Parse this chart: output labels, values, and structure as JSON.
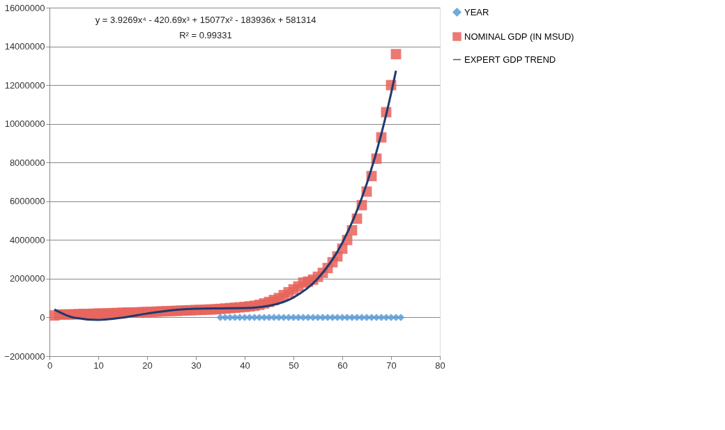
{
  "chart_data": {
    "type": "scatter",
    "annotations": [
      "y = 3.9269x⁴ - 420.69x³ + 15077x² - 183936x + 581314",
      "R² = 0.99331"
    ],
    "xlim": [
      0,
      80
    ],
    "xticks": [
      0,
      10,
      20,
      30,
      40,
      50,
      60,
      70,
      80
    ],
    "ylim": [
      -2000000,
      16000000
    ],
    "yticks": [
      -2000000,
      0,
      2000000,
      4000000,
      6000000,
      8000000,
      10000000,
      12000000,
      14000000,
      16000000
    ],
    "grid": "y",
    "legend": "right",
    "series": [
      {
        "name": "YEAR",
        "marker": "diamond",
        "color": "#5b9bd5",
        "x": [
          35,
          36,
          37,
          38,
          39,
          40,
          41,
          42,
          43,
          44,
          45,
          46,
          47,
          48,
          49,
          50,
          51,
          52,
          53,
          54,
          55,
          56,
          57,
          58,
          59,
          60,
          61,
          62,
          63,
          64,
          65,
          66,
          67,
          68,
          69,
          70,
          71,
          72
        ],
        "values": [
          0,
          0,
          0,
          0,
          0,
          0,
          0,
          0,
          0,
          0,
          0,
          0,
          0,
          0,
          0,
          0,
          0,
          0,
          0,
          0,
          0,
          0,
          0,
          0,
          0,
          0,
          0,
          0,
          0,
          0,
          0,
          0,
          0,
          0,
          0,
          0,
          0,
          0
        ]
      },
      {
        "name": "NOMINAL GDP (IN MSUD)",
        "marker": "square",
        "color": "#e8635a",
        "x": [
          1,
          2,
          3,
          4,
          5,
          6,
          7,
          8,
          9,
          10,
          11,
          12,
          13,
          14,
          15,
          16,
          17,
          18,
          19,
          20,
          21,
          22,
          23,
          24,
          25,
          26,
          27,
          28,
          29,
          30,
          31,
          32,
          33,
          34,
          35,
          36,
          37,
          38,
          39,
          40,
          41,
          42,
          43,
          44,
          45,
          46,
          47,
          48,
          49,
          50,
          51,
          52,
          53,
          54,
          55,
          56,
          57,
          58,
          59,
          60,
          61,
          62,
          63,
          64,
          65,
          66,
          67,
          68,
          69,
          70,
          71
        ],
        "values": [
          100000,
          150000,
          150000,
          150000,
          160000,
          170000,
          180000,
          180000,
          190000,
          200000,
          200000,
          210000,
          220000,
          230000,
          240000,
          250000,
          250000,
          260000,
          270000,
          280000,
          290000,
          300000,
          310000,
          320000,
          330000,
          340000,
          350000,
          360000,
          370000,
          380000,
          390000,
          400000,
          410000,
          420000,
          440000,
          460000,
          480000,
          500000,
          520000,
          540000,
          570000,
          600000,
          650000,
          720000,
          800000,
          900000,
          1000000,
          1150000,
          1300000,
          1450000,
          1600000,
          1800000,
          1850000,
          1950000,
          2100000,
          2300000,
          2550000,
          2850000,
          3150000,
          3550000,
          4000000,
          4500000,
          5100000,
          5800000,
          6500000,
          7300000,
          8200000,
          9300000,
          10600000,
          12000000,
          13600000
        ]
      },
      {
        "name": "EXPERT GDP TREND",
        "type": "line",
        "marker": "none",
        "line_style": "solid",
        "color": "#1f3a6e",
        "x": [
          1,
          5,
          10,
          15,
          20,
          25,
          30,
          35,
          40,
          45,
          50,
          55,
          60,
          65,
          68,
          70,
          71
        ],
        "values": [
          410000,
          -10000,
          -130000,
          -10000,
          200000,
          370000,
          450000,
          470000,
          480000,
          600000,
          1030000,
          2010000,
          3850000,
          6890000,
          9470000,
          11570000,
          12740000
        ]
      }
    ]
  }
}
